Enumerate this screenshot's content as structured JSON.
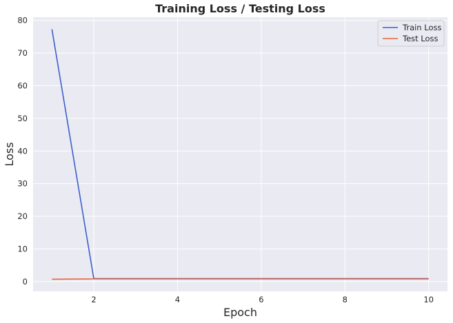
{
  "chart_data": {
    "type": "line",
    "title": "Training Loss / Testing Loss",
    "xlabel": "Epoch",
    "ylabel": "Loss",
    "x": [
      1,
      2,
      3,
      4,
      5,
      6,
      7,
      8,
      9,
      10
    ],
    "xlim": [
      0.55,
      10.45
    ],
    "ylim": [
      -3,
      81
    ],
    "xticks": [
      2,
      4,
      6,
      8,
      10
    ],
    "yticks": [
      0,
      10,
      20,
      30,
      40,
      50,
      60,
      70,
      80
    ],
    "grid": true,
    "legend_position": "top-right",
    "background_color": "#eaeaf2",
    "series": [
      {
        "name": "Train Loss",
        "color": "#3a5fcd",
        "values": [
          77.3,
          0.9,
          0.9,
          0.9,
          0.9,
          0.9,
          0.9,
          0.9,
          0.9,
          0.9
        ]
      },
      {
        "name": "Test Loss",
        "color": "#e8623a",
        "values": [
          0.7,
          0.8,
          0.8,
          0.8,
          0.8,
          0.8,
          0.8,
          0.8,
          0.8,
          0.8
        ]
      }
    ]
  }
}
